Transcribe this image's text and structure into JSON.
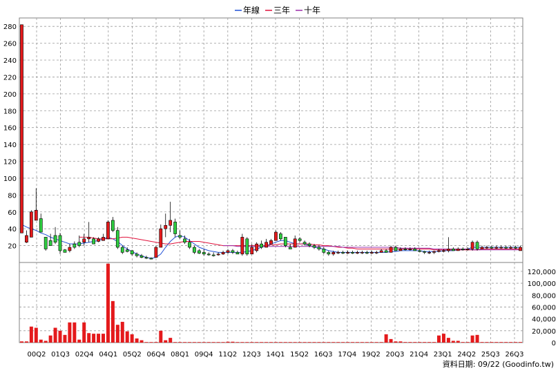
{
  "chart_data": {
    "type": "candlestick_with_volume",
    "legend": [
      {
        "label": "年線",
        "color": "#1e4fd6"
      },
      {
        "label": "三年",
        "color": "#e0103a"
      },
      {
        "label": "十年",
        "color": "#9b2aa8"
      }
    ],
    "price_axis": {
      "ylim": [
        0,
        290
      ],
      "ticks": [
        20,
        40,
        60,
        80,
        100,
        120,
        140,
        160,
        180,
        200,
        220,
        240,
        260,
        280
      ]
    },
    "volume_axis": {
      "ylim": [
        0,
        135000
      ],
      "tick_labels": [
        "0",
        "20,000",
        "40,000",
        "60,000",
        "80,000",
        "100,000",
        "120,000"
      ]
    },
    "x_tick_labels": [
      "00Q2",
      "01Q3",
      "02Q4",
      "04Q1",
      "05Q2",
      "06Q4",
      "08Q1",
      "09Q4",
      "11Q2",
      "12Q3",
      "14Q1",
      "15Q2",
      "16Q3",
      "17Q4",
      "19Q2",
      "20Q3",
      "21Q4",
      "23Q1",
      "24Q2",
      "25Q3",
      "26Q3"
    ],
    "grid": true,
    "up_color": "#e41a1c",
    "down_color": "#2ecc40",
    "source_note": "資料日期: 09/22  (Goodinfo.tw)",
    "candles": [
      [
        35,
        282,
        35,
        282
      ],
      [
        23,
        38,
        24,
        32
      ],
      [
        30,
        62,
        30,
        60
      ],
      [
        50,
        88,
        50,
        62
      ],
      [
        45,
        58,
        52,
        36
      ],
      [
        14,
        30,
        30,
        16
      ],
      [
        25,
        34,
        26,
        20
      ],
      [
        22,
        42,
        32,
        24
      ],
      [
        10,
        35,
        32,
        14
      ],
      [
        12,
        16,
        15,
        12
      ],
      [
        12,
        22,
        14,
        18
      ],
      [
        16,
        25,
        22,
        18
      ],
      [
        18,
        32,
        24,
        20
      ],
      [
        20,
        34,
        24,
        28
      ],
      [
        24,
        48,
        28,
        30
      ],
      [
        22,
        30,
        28,
        22
      ],
      [
        24,
        30,
        25,
        28
      ],
      [
        26,
        34,
        26,
        30
      ],
      [
        28,
        50,
        28,
        48
      ],
      [
        36,
        54,
        50,
        38
      ],
      [
        16,
        42,
        38,
        18
      ],
      [
        10,
        20,
        18,
        12
      ],
      [
        12,
        18,
        15,
        13
      ],
      [
        8,
        15,
        14,
        10
      ],
      [
        6,
        12,
        10,
        8
      ],
      [
        5,
        10,
        8,
        6
      ],
      [
        4,
        8,
        6,
        5
      ],
      [
        4,
        6,
        5,
        4
      ],
      [
        6,
        20,
        6,
        18
      ],
      [
        18,
        45,
        18,
        40
      ],
      [
        30,
        58,
        40,
        44
      ],
      [
        36,
        72,
        44,
        50
      ],
      [
        30,
        52,
        48,
        34
      ],
      [
        28,
        38,
        32,
        30
      ],
      [
        22,
        32,
        28,
        24
      ],
      [
        16,
        28,
        24,
        18
      ],
      [
        10,
        20,
        18,
        12
      ],
      [
        10,
        16,
        14,
        11
      ],
      [
        8,
        16,
        12,
        10
      ],
      [
        8,
        12,
        10,
        9
      ],
      [
        7,
        12,
        9,
        8
      ],
      [
        8,
        12,
        9,
        10
      ],
      [
        9,
        14,
        10,
        12
      ],
      [
        10,
        16,
        12,
        14
      ],
      [
        10,
        16,
        14,
        12
      ],
      [
        10,
        14,
        12,
        10
      ],
      [
        8,
        34,
        10,
        30
      ],
      [
        8,
        30,
        28,
        10
      ],
      [
        10,
        22,
        10,
        18
      ],
      [
        12,
        24,
        14,
        22
      ],
      [
        16,
        26,
        22,
        18
      ],
      [
        18,
        28,
        18,
        24
      ],
      [
        22,
        28,
        22,
        26
      ],
      [
        26,
        38,
        26,
        36
      ],
      [
        26,
        36,
        34,
        28
      ],
      [
        18,
        30,
        30,
        20
      ],
      [
        16,
        22,
        18,
        16
      ],
      [
        18,
        32,
        18,
        28
      ],
      [
        24,
        30,
        28,
        26
      ],
      [
        20,
        26,
        24,
        22
      ],
      [
        18,
        24,
        22,
        20
      ],
      [
        16,
        22,
        20,
        18
      ],
      [
        14,
        20,
        18,
        16
      ],
      [
        10,
        18,
        16,
        12
      ],
      [
        8,
        14,
        12,
        10
      ],
      [
        8,
        14,
        10,
        12
      ],
      [
        10,
        14,
        12,
        12
      ],
      [
        10,
        14,
        12,
        11
      ],
      [
        10,
        14,
        11,
        12
      ],
      [
        10,
        14,
        12,
        11
      ],
      [
        10,
        14,
        11,
        12
      ],
      [
        10,
        14,
        12,
        12
      ],
      [
        10,
        14,
        12,
        11
      ],
      [
        10,
        14,
        11,
        12
      ],
      [
        10,
        14,
        12,
        12
      ],
      [
        12,
        16,
        12,
        14
      ],
      [
        12,
        16,
        14,
        12
      ],
      [
        12,
        20,
        12,
        18
      ],
      [
        14,
        20,
        18,
        14
      ],
      [
        14,
        18,
        14,
        16
      ],
      [
        14,
        18,
        16,
        15
      ],
      [
        14,
        18,
        15,
        16
      ],
      [
        14,
        18,
        16,
        14
      ],
      [
        12,
        16,
        14,
        13
      ],
      [
        10,
        14,
        13,
        12
      ],
      [
        10,
        14,
        12,
        12
      ],
      [
        10,
        14,
        12,
        13
      ],
      [
        12,
        16,
        13,
        14
      ],
      [
        12,
        16,
        14,
        14
      ],
      [
        12,
        30,
        14,
        16
      ],
      [
        14,
        18,
        16,
        14
      ],
      [
        14,
        18,
        14,
        16
      ],
      [
        14,
        18,
        16,
        15
      ],
      [
        14,
        18,
        15,
        16
      ],
      [
        14,
        26,
        16,
        24
      ],
      [
        14,
        26,
        24,
        16
      ],
      [
        16,
        20,
        16,
        18
      ],
      [
        16,
        20,
        18,
        18
      ],
      [
        16,
        20,
        18,
        17
      ],
      [
        16,
        20,
        17,
        18
      ],
      [
        16,
        20,
        18,
        18
      ],
      [
        16,
        20,
        18,
        17
      ],
      [
        16,
        20,
        17,
        18
      ],
      [
        16,
        20,
        18,
        17
      ],
      [
        14,
        20,
        14,
        18
      ]
    ],
    "volumes": [
      2000,
      2000,
      27000,
      25000,
      5000,
      3000,
      12000,
      25000,
      20000,
      13000,
      34000,
      34000,
      5000,
      34000,
      16000,
      15000,
      15000,
      15000,
      133000,
      70000,
      30000,
      35000,
      19000,
      14000,
      7000,
      4000,
      500,
      500,
      1000,
      20000,
      4000,
      8000,
      500,
      500,
      500,
      500,
      300,
      300,
      300,
      300,
      300,
      300,
      300,
      1500,
      1500,
      300,
      300,
      300,
      300,
      300,
      300,
      300,
      300,
      300,
      300,
      300,
      300,
      300,
      300,
      300,
      300,
      300,
      300,
      300,
      300,
      300,
      300,
      300,
      300,
      300,
      300,
      300,
      300,
      300,
      300,
      300,
      14000,
      6000,
      2000,
      2000,
      1000,
      1000,
      1000,
      1000,
      1000,
      1000,
      1000,
      12000,
      15000,
      8000,
      3000,
      3000,
      1000,
      1000,
      12000,
      13000,
      1000,
      1000,
      1000,
      1000,
      1000,
      1000,
      1000,
      1000,
      1000
    ],
    "ma_year": [
      45,
      42,
      40,
      38,
      35,
      33,
      30,
      28,
      26,
      24,
      22,
      22,
      22,
      23,
      24,
      25,
      26,
      28,
      30,
      28,
      25,
      20,
      16,
      13,
      10,
      8,
      6,
      5,
      6,
      10,
      18,
      25,
      30,
      32,
      30,
      26,
      22,
      18,
      16,
      14,
      13,
      12,
      12,
      12,
      12,
      12,
      12,
      13,
      14,
      16,
      18,
      20,
      22,
      24,
      26,
      26,
      24,
      22,
      22,
      22,
      20,
      18,
      17,
      16,
      14,
      13,
      12,
      12,
      12,
      12,
      12,
      12,
      12,
      12,
      12,
      12,
      12,
      13,
      13,
      14,
      14,
      14,
      14,
      14,
      13,
      13,
      13,
      13,
      14,
      14,
      14,
      15,
      15,
      16,
      18,
      18,
      18,
      18,
      18,
      18,
      18,
      18,
      18,
      18,
      18
    ],
    "ma_3yr": [
      null,
      null,
      null,
      null,
      null,
      null,
      null,
      null,
      null,
      null,
      null,
      null,
      30,
      30,
      30,
      29,
      28,
      28,
      28,
      28,
      29,
      30,
      30,
      29,
      28,
      27,
      26,
      25,
      24,
      23,
      22,
      22,
      23,
      24,
      25,
      25,
      25,
      25,
      24,
      23,
      22,
      21,
      20,
      20,
      20,
      20,
      20,
      20,
      20,
      20,
      20,
      20,
      21,
      21,
      22,
      22,
      22,
      22,
      22,
      22,
      22,
      21,
      21,
      20,
      20,
      19,
      18,
      18,
      17,
      17,
      16,
      16,
      16,
      16,
      16,
      16,
      16,
      16,
      16,
      16,
      16,
      16,
      16,
      16,
      16,
      16,
      15,
      15,
      15,
      15,
      15,
      15,
      15,
      15,
      15,
      15,
      16,
      16,
      16,
      16,
      16,
      16,
      16,
      16,
      16
    ],
    "ma_10yr": [
      null,
      null,
      null,
      null,
      null,
      null,
      null,
      null,
      null,
      null,
      null,
      null,
      null,
      null,
      null,
      null,
      null,
      null,
      null,
      null,
      null,
      null,
      null,
      null,
      null,
      null,
      null,
      null,
      null,
      null,
      null,
      null,
      null,
      null,
      null,
      null,
      null,
      null,
      null,
      null,
      null,
      null,
      20,
      20,
      20,
      19,
      19,
      19,
      19,
      19,
      19,
      19,
      19,
      19,
      19,
      19,
      19,
      19,
      19,
      19,
      19,
      19,
      19,
      19,
      19,
      19,
      19,
      18,
      18,
      18,
      18,
      18,
      18,
      18,
      18,
      18,
      18,
      18,
      18,
      17,
      17,
      17,
      17,
      17,
      17,
      17,
      16,
      16,
      16,
      16,
      16,
      16,
      16,
      16,
      15,
      15,
      15,
      15,
      15,
      15,
      15,
      15,
      15,
      15,
      15
    ]
  }
}
